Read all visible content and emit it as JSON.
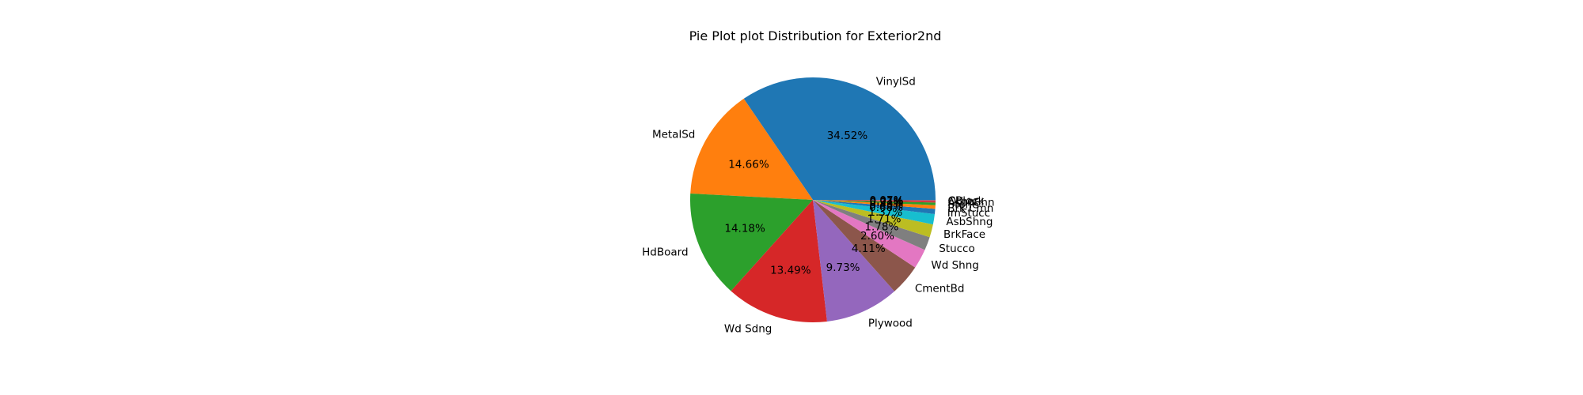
{
  "chart_data": {
    "type": "pie",
    "title": "Pie Plot plot Distribution for Exterior2nd",
    "start_angle_deg": 0,
    "direction": "counterclockwise",
    "slices": [
      {
        "label": "VinylSd",
        "value": 34.52,
        "pct_label": "34.52%",
        "color": "#1f77b4"
      },
      {
        "label": "MetalSd",
        "value": 14.66,
        "pct_label": "14.66%",
        "color": "#ff7f0e"
      },
      {
        "label": "HdBoard",
        "value": 14.18,
        "pct_label": "14.18%",
        "color": "#2ca02c"
      },
      {
        "label": "Wd Sdng",
        "value": 13.49,
        "pct_label": "13.49%",
        "color": "#d62728"
      },
      {
        "label": "Plywood",
        "value": 9.73,
        "pct_label": "9.73%",
        "color": "#9467bd"
      },
      {
        "label": "CmentBd",
        "value": 4.11,
        "pct_label": "4.11%",
        "color": "#8c564b"
      },
      {
        "label": "Wd Shng",
        "value": 2.6,
        "pct_label": "2.60%",
        "color": "#e377c2"
      },
      {
        "label": "Stucco",
        "value": 1.78,
        "pct_label": "1.78%",
        "color": "#7f7f7f"
      },
      {
        "label": "BrkFace",
        "value": 1.71,
        "pct_label": "1.71%",
        "color": "#bcbd22"
      },
      {
        "label": "AsbShng",
        "value": 1.37,
        "pct_label": "1.37%",
        "color": "#17becf"
      },
      {
        "label": "ImStucc",
        "value": 0.68,
        "pct_label": "0.68%",
        "color": "#1f77b4"
      },
      {
        "label": "Brk Cmn",
        "value": 0.48,
        "pct_label": "0.48%",
        "color": "#ff7f0e"
      },
      {
        "label": "Stone",
        "value": 0.34,
        "pct_label": "0.34%",
        "color": "#2ca02c"
      },
      {
        "label": "AsphShn",
        "value": 0.21,
        "pct_label": "0.21%",
        "color": "#d62728"
      },
      {
        "label": "Other",
        "value": 0.07,
        "pct_label": "0.07%",
        "color": "#9467bd"
      },
      {
        "label": "CBlock",
        "value": 0.07,
        "pct_label": "0.07%",
        "color": "#8c564b"
      }
    ]
  }
}
